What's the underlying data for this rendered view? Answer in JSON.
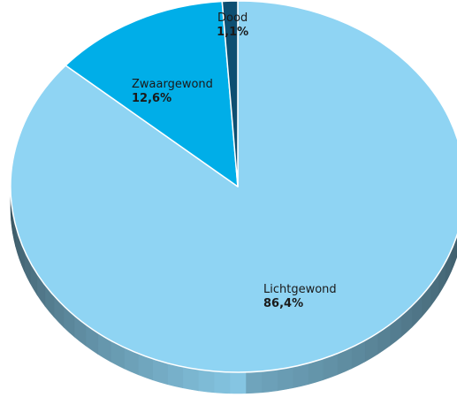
{
  "chart_data": {
    "type": "pie",
    "title": "",
    "slices": [
      {
        "label": "Dood",
        "value": 1.1,
        "value_label": "1,1%",
        "color": "#0d4f72"
      },
      {
        "label": "Zwaargewond",
        "value": 12.6,
        "value_label": "12,6%",
        "color": "#00aee8"
      },
      {
        "label": "Lichtgewond",
        "value": 86.4,
        "value_label": "86,4%",
        "color": "#8fd4f3"
      }
    ],
    "style": "3d",
    "legend": "none"
  }
}
